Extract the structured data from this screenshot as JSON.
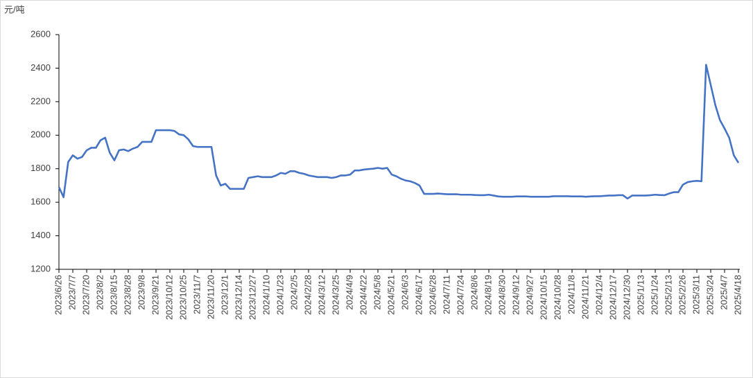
{
  "chart_data": {
    "type": "line",
    "ylabel": "元/吨",
    "x": [
      "2023/6/26",
      null,
      null,
      "2023/7/7",
      null,
      null,
      "2023/7/20",
      null,
      null,
      "2023/8/2",
      null,
      null,
      "2023/8/15",
      null,
      null,
      "2023/8/28",
      null,
      null,
      "2023/9/8",
      null,
      null,
      "2023/9/21",
      null,
      null,
      "2023/10/12",
      null,
      null,
      "2023/10/25",
      null,
      null,
      "2023/11/7",
      null,
      null,
      "2023/11/20",
      null,
      null,
      "2023/12/1",
      null,
      null,
      "2023/12/14",
      null,
      null,
      "2023/12/27",
      null,
      null,
      "2024/1/10",
      null,
      null,
      "2024/1/23",
      null,
      null,
      "2024/2/5",
      null,
      null,
      "2024/2/28",
      null,
      null,
      "2024/3/12",
      null,
      null,
      "2024/3/25",
      null,
      null,
      "2024/4/9",
      null,
      null,
      "2024/4/22",
      null,
      null,
      "2024/5/8",
      null,
      null,
      "2024/5/21",
      null,
      null,
      "2024/6/3",
      null,
      null,
      "2024/6/17",
      null,
      null,
      "2024/6/28",
      null,
      null,
      "2024/7/11",
      null,
      null,
      "2024/7/24",
      null,
      null,
      "2024/8/6",
      null,
      null,
      "2024/8/19",
      null,
      null,
      "2024/8/30",
      null,
      null,
      "2024/9/12",
      null,
      null,
      "2024/9/27",
      null,
      null,
      "2024/10/15",
      null,
      null,
      "2024/10/28",
      null,
      null,
      "2024/11/8",
      null,
      null,
      "2024/11/21",
      null,
      null,
      "2024/12/4",
      null,
      null,
      "2024/12/17",
      null,
      null,
      "2024/12/30",
      null,
      null,
      "2025/1/13",
      null,
      null,
      "2025/1/24",
      null,
      null,
      "2025/2/13",
      null,
      null,
      "2025/2/26",
      null,
      null,
      "2025/3/11",
      null,
      null,
      "2025/3/24",
      null,
      null,
      "2025/4/7",
      null,
      null,
      "2025/4/18"
    ],
    "series": [
      {
        "color": "#4472c4",
        "values": [
          1690,
          1630,
          1840,
          1880,
          1860,
          1870,
          1910,
          1925,
          1925,
          1970,
          1985,
          1895,
          1850,
          1910,
          1915,
          1905,
          1920,
          1930,
          1960,
          1960,
          1960,
          2030,
          2030,
          2030,
          2030,
          2025,
          2005,
          2000,
          1975,
          1935,
          1930,
          1930,
          1930,
          1930,
          1760,
          1700,
          1710,
          1680,
          1680,
          1680,
          1680,
          1745,
          1750,
          1755,
          1750,
          1750,
          1750,
          1760,
          1775,
          1770,
          1785,
          1785,
          1775,
          1770,
          1760,
          1755,
          1750,
          1750,
          1750,
          1745,
          1750,
          1760,
          1760,
          1765,
          1790,
          1790,
          1795,
          1798,
          1800,
          1805,
          1800,
          1805,
          1765,
          1755,
          1740,
          1730,
          1725,
          1715,
          1700,
          1650,
          1650,
          1650,
          1652,
          1650,
          1648,
          1648,
          1648,
          1645,
          1645,
          1645,
          1643,
          1642,
          1642,
          1645,
          1640,
          1635,
          1633,
          1633,
          1633,
          1635,
          1635,
          1635,
          1633,
          1633,
          1633,
          1633,
          1633,
          1636,
          1636,
          1636,
          1636,
          1635,
          1635,
          1635,
          1633,
          1635,
          1636,
          1636,
          1638,
          1640,
          1640,
          1642,
          1642,
          1622,
          1640,
          1640,
          1640,
          1640,
          1642,
          1645,
          1643,
          1642,
          1652,
          1660,
          1660,
          1705,
          1720,
          1725,
          1728,
          1725,
          2420,
          2300,
          2180,
          2090,
          2040,
          1985,
          1880,
          1835
        ]
      }
    ],
    "ylim": [
      1200,
      2600
    ],
    "yticks": [
      1200,
      1400,
      1600,
      1800,
      2000,
      2200,
      2400,
      2600
    ]
  }
}
